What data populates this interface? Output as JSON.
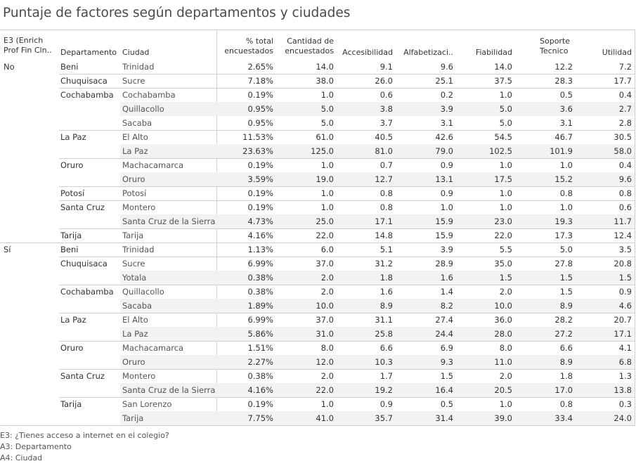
{
  "title": "Puntaje de factores según departamentos y ciudades",
  "headers": {
    "e3": [
      "E3 (Enrich",
      "Prof Fin Cln.."
    ],
    "departamento": "Departamento",
    "ciudad": "Ciudad",
    "pct": [
      "% total",
      "encuestados"
    ],
    "cantidad": [
      "Cantidad de",
      "encuestados"
    ],
    "accesibilidad": "Accesibilidad",
    "alfabetizacion": "Alfabetizaci..",
    "fiabilidad": "Fiabilidad",
    "soporte": [
      "Soporte",
      "Tecnico"
    ],
    "utilidad": "Utilidad"
  },
  "footnotes": [
    "E3:  ¿Tienes acceso a internet en el colegio?",
    "A3: Departamento",
    "A4: Ciudad"
  ],
  "chart_data": {
    "type": "table",
    "title": "Puntaje de factores según departamentos y ciudades",
    "columns": [
      "E3 (Enrich Prof Fin Cln..",
      "Departamento",
      "Ciudad",
      "% total encuestados",
      "Cantidad de encuestados",
      "Accesibilidad",
      "Alfabetizaci..",
      "Fiabilidad",
      "Soporte Tecnico",
      "Utilidad"
    ],
    "rows": [
      [
        "No",
        "Beni",
        "Trinidad",
        "2.65%",
        "14.0",
        "9.1",
        "9.6",
        "14.0",
        "12.2",
        "7.2"
      ],
      [
        "",
        "Chuquisaca",
        "Sucre",
        "7.18%",
        "38.0",
        "26.0",
        "25.1",
        "37.5",
        "28.3",
        "17.7"
      ],
      [
        "",
        "Cochabamba",
        "Cochabamba",
        "0.19%",
        "1.0",
        "0.6",
        "0.2",
        "1.0",
        "0.5",
        "0.4"
      ],
      [
        "",
        "",
        "Quillacollo",
        "0.95%",
        "5.0",
        "3.8",
        "3.9",
        "5.0",
        "3.6",
        "2.7"
      ],
      [
        "",
        "",
        "Sacaba",
        "0.95%",
        "5.0",
        "3.7",
        "3.1",
        "5.0",
        "3.1",
        "2.8"
      ],
      [
        "",
        "La Paz",
        "El Alto",
        "11.53%",
        "61.0",
        "40.5",
        "42.6",
        "54.5",
        "46.7",
        "30.5"
      ],
      [
        "",
        "",
        "La Paz",
        "23.63%",
        "125.0",
        "81.0",
        "79.0",
        "102.5",
        "101.9",
        "58.0"
      ],
      [
        "",
        "Oruro",
        "Machacamarca",
        "0.19%",
        "1.0",
        "0.7",
        "0.9",
        "1.0",
        "1.0",
        "0.4"
      ],
      [
        "",
        "",
        "Oruro",
        "3.59%",
        "19.0",
        "12.7",
        "13.1",
        "17.5",
        "15.2",
        "9.6"
      ],
      [
        "",
        "Potosí",
        "Potosí",
        "0.19%",
        "1.0",
        "0.8",
        "0.9",
        "1.0",
        "0.8",
        "0.8"
      ],
      [
        "",
        "Santa Cruz",
        "Montero",
        "0.19%",
        "1.0",
        "0.8",
        "1.0",
        "1.0",
        "1.0",
        "0.6"
      ],
      [
        "",
        "",
        "Santa Cruz de la Sierra",
        "4.73%",
        "25.0",
        "17.1",
        "15.9",
        "23.0",
        "19.3",
        "11.7"
      ],
      [
        "",
        "Tarija",
        "Tarija",
        "4.16%",
        "22.0",
        "14.8",
        "15.9",
        "22.0",
        "17.3",
        "12.4"
      ],
      [
        "Sí",
        "Beni",
        "Trinidad",
        "1.13%",
        "6.0",
        "5.1",
        "3.9",
        "5.5",
        "5.0",
        "3.5"
      ],
      [
        "",
        "Chuquisaca",
        "Sucre",
        "6.99%",
        "37.0",
        "31.2",
        "28.9",
        "35.0",
        "27.8",
        "20.8"
      ],
      [
        "",
        "",
        "Yotala",
        "0.38%",
        "2.0",
        "1.8",
        "1.6",
        "1.5",
        "1.5",
        "1.5"
      ],
      [
        "",
        "Cochabamba",
        "Quillacollo",
        "0.38%",
        "2.0",
        "1.6",
        "1.4",
        "2.0",
        "1.5",
        "0.9"
      ],
      [
        "",
        "",
        "Sacaba",
        "1.89%",
        "10.0",
        "8.9",
        "8.2",
        "10.0",
        "8.9",
        "4.6"
      ],
      [
        "",
        "La Paz",
        "El Alto",
        "6.99%",
        "37.0",
        "31.1",
        "27.4",
        "36.0",
        "28.2",
        "20.7"
      ],
      [
        "",
        "",
        "La Paz",
        "5.86%",
        "31.0",
        "25.8",
        "24.4",
        "28.0",
        "27.2",
        "17.1"
      ],
      [
        "",
        "Oruro",
        "Machacamarca",
        "1.51%",
        "8.0",
        "6.6",
        "6.9",
        "8.0",
        "6.6",
        "4.1"
      ],
      [
        "",
        "",
        "Oruro",
        "2.27%",
        "12.0",
        "10.3",
        "9.3",
        "11.0",
        "8.9",
        "6.8"
      ],
      [
        "",
        "Santa Cruz",
        "Montero",
        "0.38%",
        "2.0",
        "1.7",
        "1.5",
        "2.0",
        "1.8",
        "1.3"
      ],
      [
        "",
        "",
        "Santa Cruz de la Sierra",
        "4.16%",
        "22.0",
        "19.2",
        "16.4",
        "20.5",
        "17.0",
        "13.8"
      ],
      [
        "",
        "Tarija",
        "San Lorenzo",
        "0.19%",
        "1.0",
        "0.9",
        "0.5",
        "1.0",
        "0.8",
        "0.3"
      ],
      [
        "",
        "",
        "Tarija",
        "7.75%",
        "41.0",
        "35.7",
        "31.4",
        "39.0",
        "33.4",
        "24.0"
      ]
    ]
  }
}
